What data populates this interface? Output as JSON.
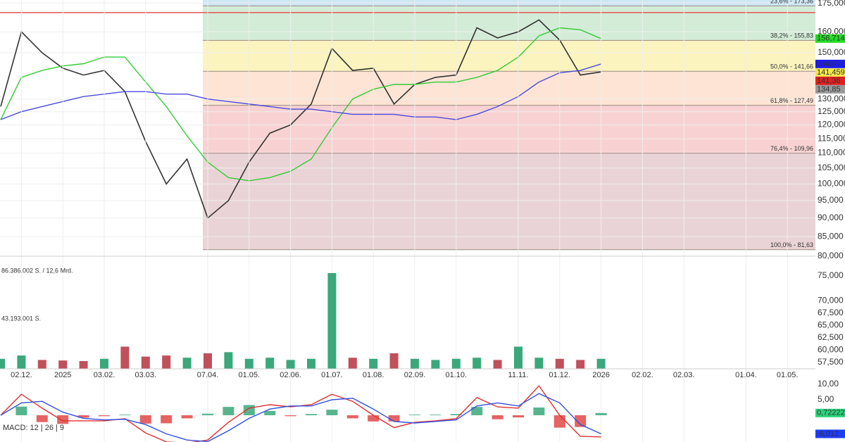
{
  "chart_data": [
    {
      "type": "price",
      "categories": [
        null,
        "02.12.",
        null,
        "2025",
        null,
        "03.02.",
        null,
        "03.03.",
        null,
        null,
        "07.04.",
        null,
        "01.05.",
        null,
        "02.06.",
        null,
        "01.07.",
        null,
        "01.08.",
        null,
        "02.09.",
        null,
        "01.10.",
        null,
        null,
        "11.11.",
        null,
        "01.12.",
        null,
        "2026",
        null,
        "02.02.",
        null,
        "02.03.",
        null,
        null,
        "01.04.",
        null,
        "01.05."
      ],
      "series": [
        {
          "color": "#333333",
          "values": [
            127,
            160,
            150,
            143,
            140,
            142,
            133,
            114,
            100,
            108,
            90,
            95,
            107,
            117,
            120,
            128,
            152,
            142,
            143,
            128,
            136,
            139,
            140,
            162,
            157,
            160,
            166,
            156,
            140,
            141.36,
            null,
            null,
            null,
            null,
            null,
            null,
            null,
            null,
            null
          ]
        },
        {
          "color": "#33cc33",
          "values": [
            122,
            139,
            142,
            144,
            145,
            148,
            148,
            137,
            127,
            116,
            107,
            102,
            101,
            102,
            104,
            108,
            119,
            130,
            134,
            136,
            136,
            137,
            137,
            139,
            142,
            148,
            158,
            162,
            161,
            156.714,
            null,
            null,
            null,
            null,
            null,
            null,
            null,
            null,
            null
          ]
        },
        {
          "color": "#4a4adf",
          "values": [
            122,
            125,
            127,
            129,
            131,
            132,
            133,
            133,
            132,
            132,
            130,
            129,
            128,
            127,
            126,
            126,
            125,
            124,
            124,
            124,
            123,
            123,
            122,
            124,
            127,
            131,
            137,
            141,
            142,
            144.873,
            null,
            null,
            null,
            null,
            null,
            null,
            null,
            null,
            null
          ]
        }
      ],
      "ylim": [
        80,
        175
      ],
      "log_scale": true,
      "grid": true,
      "yticks": [
        {
          "value": 175,
          "label": "175,000"
        },
        {
          "value": 160,
          "label": "160,000"
        },
        {
          "value": 150,
          "label": "150,000"
        },
        {
          "value": 130,
          "label": "130,000"
        },
        {
          "value": 125,
          "label": "125,000"
        },
        {
          "value": 120,
          "label": "120,000"
        },
        {
          "value": 115,
          "label": "115,000"
        },
        {
          "value": 110,
          "label": "110,000"
        },
        {
          "value": 105,
          "label": "105,000"
        },
        {
          "value": 100,
          "label": "100,000"
        },
        {
          "value": 95,
          "label": "95,000"
        },
        {
          "value": 90,
          "label": "90,000"
        },
        {
          "value": 85,
          "label": "85,000"
        },
        {
          "value": 80,
          "label": "80,000"
        }
      ],
      "hline": {
        "value": 169.8,
        "color": "#e05555"
      },
      "fib_levels": [
        {
          "value": 173.36,
          "label": "23,6% - 173,36",
          "color": "#cde7f4"
        },
        {
          "value": 155.83,
          "label": "38,2% - 155,83",
          "color": "#d3ecd8"
        },
        {
          "value": 141.66,
          "label": "50,0% - 141,66",
          "color": "#fbf4bf"
        },
        {
          "value": 127.49,
          "label": "61,8% - 127,49",
          "color": "#fde4d4"
        },
        {
          "value": 109.96,
          "label": "76,4% - 109,96",
          "color": "#f8d2d2"
        },
        {
          "value": 81.63,
          "label": "100,0% - 81,63",
          "color": "#ead3d6"
        }
      ],
      "price_tags": [
        {
          "value": 156.714,
          "label": "156,714",
          "color": "#22dd22",
          "text_color": "#000000"
        },
        {
          "value": 144.873,
          "label": "144,873",
          "color": "#1a1aff",
          "text_color": "#ffffff"
        },
        {
          "value": 141.459,
          "label": "141,459",
          "color": "#f5e84a",
          "text_color": "#000000"
        },
        {
          "value": 141.36,
          "label": "141,36",
          "color": "#e02020",
          "text_color": "#ffffff"
        },
        {
          "value": 134.85,
          "label": "134,85",
          "color": "#9a9a9a",
          "text_color": "#000000"
        }
      ]
    },
    {
      "type": "volume",
      "values": [
        9000000,
        12000000,
        8000000,
        7500000,
        7000000,
        9000000,
        20000000,
        11000000,
        12000000,
        10000000,
        14000000,
        15000000,
        9000000,
        10000000,
        8000000,
        9000000,
        86386002,
        10000000,
        9000000,
        14000000,
        9000000,
        8000000,
        9000000,
        10000000,
        8000000,
        20000000,
        10000000,
        9000000,
        8000000,
        9000000,
        null,
        null,
        null,
        null,
        null,
        null,
        null,
        null,
        null
      ],
      "ylim": [
        0,
        94600000
      ],
      "yticks": [
        {
          "value": 86386002,
          "label": "86.386.002 S. / 12,6 Mrd."
        },
        {
          "value": 43193001,
          "label": "43.193.001 S."
        }
      ],
      "y2lim": [
        56.22,
        77.42
      ],
      "y2ticks": [
        {
          "value": 75,
          "label": "75,000"
        },
        {
          "value": 70,
          "label": "70,000"
        },
        {
          "value": 67.5,
          "label": "67,500"
        },
        {
          "value": 65,
          "label": "65,000"
        },
        {
          "value": 62.5,
          "label": "62,500"
        },
        {
          "value": 60,
          "label": "60,000"
        },
        {
          "value": 57.5,
          "label": "57,500"
        }
      ],
      "up_color": "#3aa87a",
      "down_color": "#c0505a"
    },
    {
      "type": "macd",
      "title": "MACD: 12 | 26 | 9",
      "series": [
        {
          "color": "#e03030",
          "values": [
            0,
            6.8,
            2.3,
            -1.8,
            -1.8,
            -1.8,
            -1.1,
            -5.7,
            -8.6,
            -9,
            -8,
            -2.3,
            2.3,
            3.4,
            2.7,
            3.4,
            6.8,
            4.5,
            0,
            -4,
            -2.3,
            -1.8,
            -1.1,
            5.7,
            2.7,
            2.3,
            9.5,
            0,
            -6.8,
            -7,
            null,
            null,
            null,
            null,
            null,
            null,
            null,
            null,
            null
          ]
        },
        {
          "color": "#3050e0",
          "values": [
            0,
            4,
            4.5,
            1,
            -1,
            -1.5,
            -1.3,
            -3,
            -6,
            -8,
            -8.5,
            -5,
            -1,
            2,
            3,
            3,
            5,
            5.5,
            2,
            -2,
            -2.5,
            -2,
            -1.5,
            3,
            4,
            3,
            7,
            4,
            -3,
            -6.012,
            null,
            null,
            null,
            null,
            null,
            null,
            null,
            null,
            null
          ]
        }
      ],
      "histogram": [
        0,
        2.8,
        -2.2,
        -2.8,
        -0.8,
        -0.3,
        0.2,
        -2.7,
        -2.6,
        -1,
        0.5,
        2.7,
        3.3,
        1.4,
        -0.3,
        0.4,
        1.8,
        -1,
        -2,
        -2,
        0.2,
        0.2,
        0.4,
        2.7,
        -1.3,
        -0.7,
        2.5,
        -4,
        -3.8,
        0.72222,
        null,
        null,
        null,
        null,
        null,
        null,
        null,
        null,
        null
      ],
      "up_color": "#3aa87a",
      "down_color": "#e04848",
      "ylim": [
        -8.64,
        12.5
      ],
      "yticks": [
        {
          "value": 10,
          "label": "10,00"
        },
        {
          "value": 5,
          "label": "5,00"
        }
      ],
      "value_tags": [
        {
          "value": 0.72222,
          "label": "0,72222",
          "color": "#2bd47a",
          "text_color": "#000000"
        },
        {
          "value": -6.012,
          "label": "-6,012",
          "color": "#1a3cff",
          "text_color": "#ffffff"
        }
      ]
    }
  ]
}
